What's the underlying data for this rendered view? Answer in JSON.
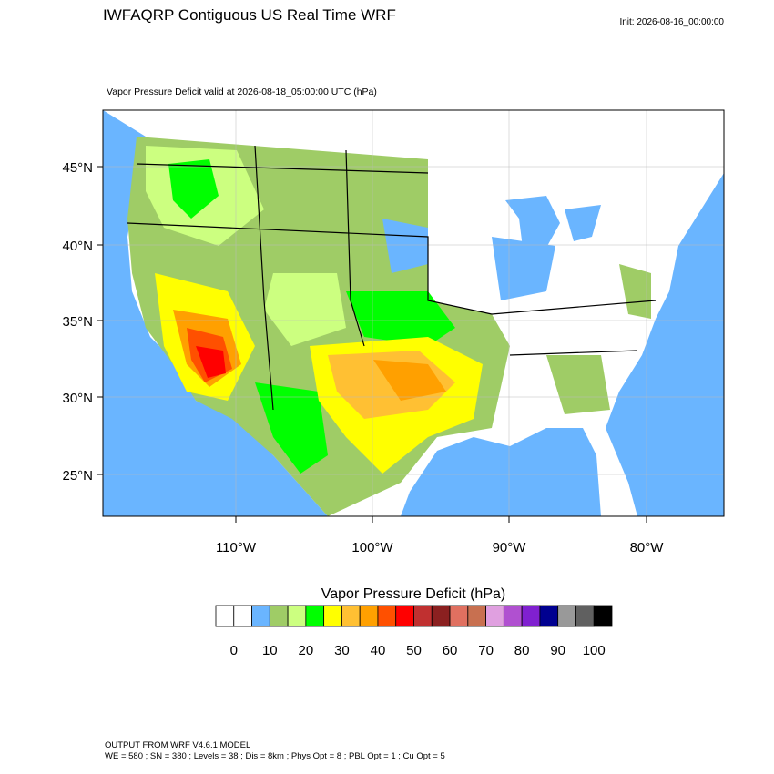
{
  "header": {
    "title": "IWFAQRP Contiguous US Real Time WRF",
    "init": "Init: 2026-08-16_00:00:00"
  },
  "map": {
    "subtitle": "Vapor Pressure Deficit valid at 2026-08-18_05:00:00 UTC   (hPa)",
    "lat_labels": [
      "45°N",
      "40°N",
      "35°N",
      "30°N",
      "25°N"
    ],
    "lon_labels": [
      "110°W",
      "100°W",
      "90°W",
      "80°W"
    ]
  },
  "colorbar": {
    "title": "Vapor Pressure Deficit  (hPa)",
    "colors": [
      "#ffffff",
      "#ffffff",
      "#6ab5ff",
      "#9fcc66",
      "#ccff80",
      "#00ff00",
      "#ffff00",
      "#ffc033",
      "#ffa000",
      "#ff5000",
      "#ff0000",
      "#c03030",
      "#8b2020",
      "#e07060",
      "#c87050",
      "#e0a0e0",
      "#b050d0",
      "#8020d0",
      "#000090",
      "#999999",
      "#606060",
      "#000000"
    ],
    "labels": [
      0,
      10,
      20,
      30,
      40,
      50,
      60,
      70,
      80,
      90,
      100
    ]
  },
  "footer": {
    "line1": "OUTPUT FROM WRF V4.6.1 MODEL",
    "line2": "WE = 580 ; SN = 380 ; Levels = 38 ; Dis = 8km ; Phys Opt = 8 ; PBL Opt = 1 ; Cu Opt = 5"
  }
}
